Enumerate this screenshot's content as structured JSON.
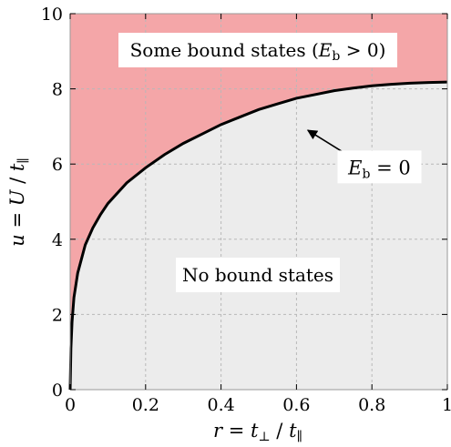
{
  "chart_data": {
    "type": "area",
    "xlabel": "r = t⊥ / t∥",
    "ylabel": "u = U / t∥",
    "xlim": [
      0,
      1
    ],
    "ylim": [
      0,
      10
    ],
    "xticks": [
      0,
      0.2,
      0.4,
      0.6,
      0.8,
      1
    ],
    "xtick_labels": [
      "0",
      "0.2",
      "0.4",
      "0.6",
      "0.8",
      "1"
    ],
    "yticks": [
      0,
      2,
      4,
      6,
      8,
      10
    ],
    "ytick_labels": [
      "0",
      "2",
      "4",
      "6",
      "8",
      "10"
    ],
    "grid": true,
    "boundary": {
      "x": [
        0,
        0.002,
        0.005,
        0.01,
        0.02,
        0.04,
        0.06,
        0.08,
        0.1,
        0.15,
        0.2,
        0.25,
        0.3,
        0.35,
        0.4,
        0.45,
        0.5,
        0.55,
        0.6,
        0.65,
        0.7,
        0.75,
        0.8,
        0.85,
        0.9,
        0.95,
        1.0
      ],
      "y": [
        0,
        1.1,
        1.8,
        2.45,
        3.1,
        3.85,
        4.3,
        4.65,
        4.95,
        5.5,
        5.9,
        6.25,
        6.55,
        6.8,
        7.05,
        7.25,
        7.45,
        7.6,
        7.75,
        7.85,
        7.95,
        8.02,
        8.08,
        8.12,
        8.15,
        8.17,
        8.18
      ]
    },
    "regions": [
      {
        "label": "Some bound states (Eb > 0)",
        "color": "#f4a6a8",
        "position": "above-curve"
      },
      {
        "label": "No bound states",
        "color": "#ececec",
        "position": "below-curve"
      }
    ],
    "annotations": [
      {
        "text": "Eb = 0",
        "arrow_to": [
          0.63,
          6.9
        ],
        "text_at": [
          0.82,
          5.9
        ]
      }
    ],
    "colors": {
      "curve": "#000000",
      "upper": "#f4a6a8",
      "lower": "#ececec",
      "grid": "#b8b8b8"
    }
  }
}
